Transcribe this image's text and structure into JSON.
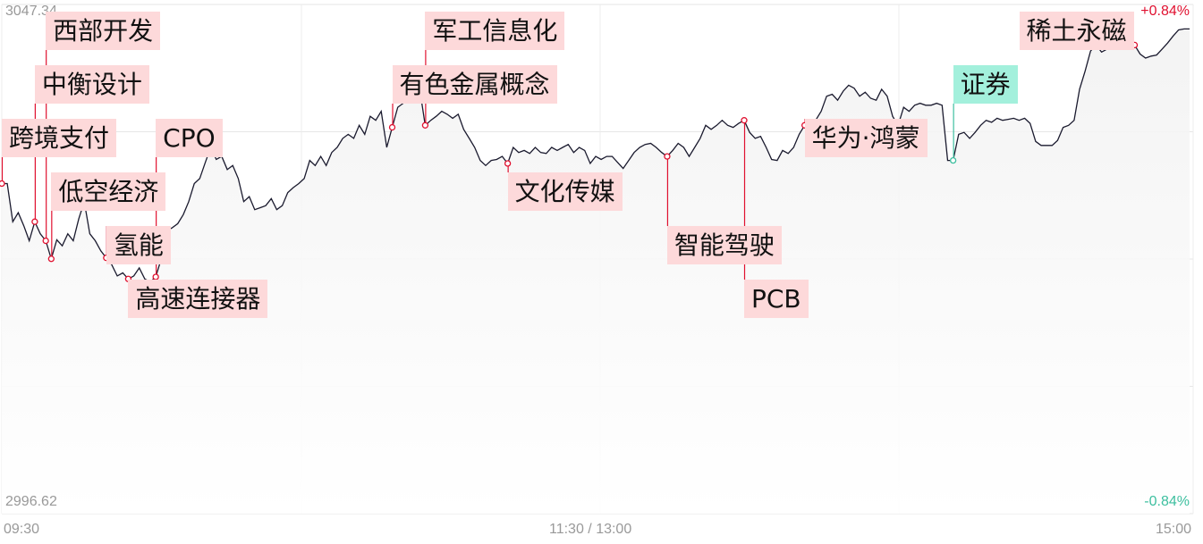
{
  "chart_data": {
    "type": "line",
    "title": "",
    "y_axis": {
      "max_label": "3047.34",
      "min_label": "2996.62",
      "ylim": [
        2996.62,
        3047.34
      ],
      "prev_close": 3021.98
    },
    "right_axis": {
      "max_label": "+0.84%",
      "min_label": "-0.84%"
    },
    "x_axis": {
      "tick_labels": [
        "09:30",
        "11:30 / 13:00",
        "15:00"
      ]
    },
    "grid": true,
    "colors": {
      "line": "#1a1a2e",
      "up": "#e0102f",
      "down": "#3dbf9f",
      "label_bg": "#fdd9da",
      "label_bg_green": "#a3f0dc",
      "grid": "#e6e6e6",
      "axis_text": "#999999"
    },
    "series": [
      {
        "values": [
          3029.5,
          3029.5,
          3025.7,
          3026.6,
          3025.3,
          3023.8,
          3025.7,
          3024.5,
          3023.8,
          3022.0,
          3023.9,
          3023.3,
          3024.5,
          3023.8,
          3026.0,
          3027.7,
          3024.5,
          3023.8,
          3022.8,
          3022.1,
          3021.4,
          3020.3,
          3020.6,
          3020.0,
          3020.3,
          3021.1,
          3020.0,
          3019.7,
          3020.2,
          3022.0,
          3024.8,
          3025.1,
          3025.5,
          3026.4,
          3027.7,
          3029.5,
          3030.0,
          3031.6,
          3033.1,
          3031.9,
          3032.2,
          3030.9,
          3031.3,
          3030.0,
          3027.7,
          3028.2,
          3026.9,
          3027.1,
          3027.3,
          3028.0,
          3026.9,
          3027.3,
          3028.6,
          3029.1,
          3029.5,
          3030.0,
          3031.8,
          3031.3,
          3032.2,
          3031.3,
          3032.6,
          3033.1,
          3034.0,
          3034.4,
          3034.0,
          3035.3,
          3034.4,
          3036.2,
          3035.8,
          3036.7,
          3033.1,
          3035.1,
          3037.1,
          3037.5,
          3038.4,
          3039.6,
          3038.9,
          3035.3,
          3035.8,
          3036.2,
          3036.7,
          3036.4,
          3036.0,
          3036.4,
          3034.9,
          3034.0,
          3033.1,
          3031.8,
          3031.3,
          3031.8,
          3031.9,
          3032.2,
          3031.5,
          3033.1,
          3032.6,
          3032.8,
          3032.5,
          3033.1,
          3032.6,
          3032.5,
          3033.1,
          3032.8,
          3033.1,
          3033.4,
          3032.6,
          3033.1,
          3032.8,
          3031.5,
          3032.2,
          3031.9,
          3032.2,
          3032.2,
          3031.6,
          3031.0,
          3031.8,
          3032.6,
          3033.1,
          3033.4,
          3033.5,
          3033.1,
          3032.6,
          3032.2,
          3032.8,
          3033.5,
          3033.1,
          3032.2,
          3033.1,
          3034.0,
          3035.3,
          3034.9,
          3035.3,
          3035.8,
          3035.3,
          3035.1,
          3035.5,
          3035.8,
          3034.6,
          3034.0,
          3034.2,
          3033.1,
          3031.9,
          3031.8,
          3032.8,
          3032.5,
          3033.1,
          3034.4,
          3035.3,
          3034.9,
          3035.8,
          3036.7,
          3038.2,
          3038.4,
          3037.8,
          3038.7,
          3039.3,
          3039.0,
          3038.2,
          3038.6,
          3038.0,
          3037.8,
          3038.9,
          3038.2,
          3036.2,
          3035.3,
          3037.1,
          3036.7,
          3037.3,
          3037.5,
          3037.3,
          3037.3,
          3037.5,
          3037.3,
          3031.8,
          3031.8,
          3034.4,
          3034.6,
          3034.0,
          3034.6,
          3035.3,
          3035.8,
          3035.6,
          3036.0,
          3035.8,
          3035.9,
          3036.0,
          3035.8,
          3036.0,
          3035.5,
          3033.7,
          3033.3,
          3033.3,
          3033.3,
          3033.8,
          3035.1,
          3035.3,
          3035.8,
          3038.9,
          3040.7,
          3042.7,
          3043.3,
          3042.6,
          3042.9,
          3044.2,
          3044.7,
          3044.4,
          3043.8,
          3043.3,
          3042.4,
          3042.0,
          3042.2,
          3042.3,
          3042.9,
          3043.5,
          3044.2,
          3044.8,
          3044.9,
          3044.9
        ]
      }
    ],
    "annotations": [
      {
        "label": "跨境支付",
        "point_index": 0,
        "color": "up"
      },
      {
        "label": "中衡设计",
        "point_index": 6,
        "color": "up"
      },
      {
        "label": "西部开发",
        "point_index": 8,
        "color": "up"
      },
      {
        "label": "低空经济",
        "point_index": 9,
        "color": "up"
      },
      {
        "label": "氢能",
        "point_index": 19,
        "color": "up"
      },
      {
        "label": "高速连接器",
        "point_index": 23,
        "color": "up"
      },
      {
        "label": "CPO",
        "point_index": 28,
        "color": "up"
      },
      {
        "label": "有色金属概念",
        "point_index": 71,
        "color": "up"
      },
      {
        "label": "军工信息化",
        "point_index": 77,
        "color": "up"
      },
      {
        "label": "文化传媒",
        "point_index": 92,
        "color": "up"
      },
      {
        "label": "智能驾驶",
        "point_index": 121,
        "color": "up"
      },
      {
        "label": "PCB",
        "point_index": 135,
        "color": "up"
      },
      {
        "label": "华为·鸿蒙",
        "point_index": 146,
        "color": "up"
      },
      {
        "label": "证券",
        "point_index": 173,
        "color": "down"
      },
      {
        "label": "稀土永磁",
        "point_index": 206,
        "color": "up"
      }
    ]
  }
}
